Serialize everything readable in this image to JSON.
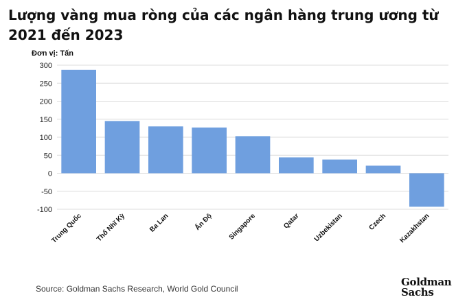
{
  "title": "Lượng vàng mua ròng của các ngân hàng trung ương từ 2021 đến 2023",
  "unit_label": "Đơn vị: Tấn",
  "source": "Source: Goldman Sachs Research, World Gold Council",
  "logo": {
    "line1": "Goldman",
    "line2": "Sachs"
  },
  "colors": {
    "bar": "#6f9fdf",
    "grid": "#dcdcdc",
    "text": "#111111"
  },
  "chart_data": {
    "type": "bar",
    "title": "Lượng vàng mua ròng của các ngân hàng trung ương từ 2021 đến 2023",
    "ylabel": "Đơn vị: Tấn",
    "categories": [
      "Trung Quốc",
      "Thổ Nhĩ Kỳ",
      "Ba Lan",
      "Ấn Độ",
      "Singapore",
      "Qatar",
      "Uzbekistan",
      "Czech",
      "Kazakhstan"
    ],
    "values": [
      287,
      145,
      130,
      127,
      103,
      44,
      38,
      21,
      -93
    ],
    "ylim": [
      -100,
      300
    ],
    "yticks": [
      300,
      250,
      200,
      150,
      100,
      50,
      0,
      -50,
      -100
    ],
    "grid": true,
    "legend": "none"
  }
}
